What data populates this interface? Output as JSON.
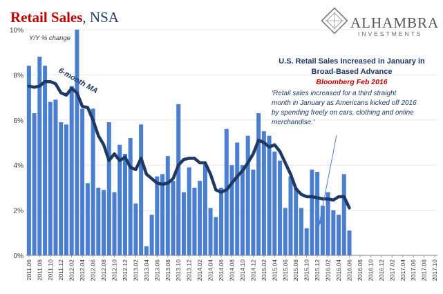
{
  "header": {
    "title_main": "Retail Sales",
    "title_sub": ", NSA"
  },
  "logo": {
    "name": "ALHAMBRA",
    "sub": "INVESTMENTS"
  },
  "annotation": {
    "heading_line1": "U.S. Retail Sales Increased in January in",
    "heading_line2": "Broad-Based Advance",
    "source": "Bloomberg Feb 2016",
    "quote_lines": [
      "'Retail sales increased for a third straight",
      "month in January as Americans kicked off 2016",
      "by spending freely on cars, clothing and online",
      "merchandise.'"
    ]
  },
  "colors": {
    "bars": "#4a7fcf",
    "ma_line": "#1f3864",
    "title_red": "#c00000",
    "axis": "#808080"
  },
  "chart_data": {
    "type": "bar",
    "ylabel": "Y/Y % change",
    "ylim": [
      0,
      10
    ],
    "yticks": [
      "0%",
      "2%",
      "4%",
      "6%",
      "8%",
      "10%"
    ],
    "x_ticks": [
      "2011.06",
      "2011.08",
      "2011.10",
      "2011.12",
      "2012.02",
      "2012.04",
      "2012.06",
      "2012.08",
      "2012.10",
      "2012.12",
      "2013.02",
      "2013.04",
      "2013.06",
      "2013.08",
      "2013.10",
      "2013.12",
      "2014.02",
      "2014.04",
      "2014.06",
      "2014.08",
      "2014.10",
      "2014.12",
      "2015.02",
      "2015.04",
      "2015.06",
      "2015.08",
      "2015.10",
      "2015.12",
      "2016.02",
      "2016.04",
      "2016.06",
      "2016.08",
      "2016.10",
      "2016.12",
      "2017.02",
      "2017.04",
      "2017.06",
      "2017.08",
      "2017.10"
    ],
    "x_start": "2011.06",
    "series": [
      {
        "type": "bar",
        "values": [
          8.4,
          6.3,
          8.8,
          8.4,
          6.8,
          6.9,
          5.9,
          5.8,
          7.5,
          10.0,
          6.5,
          3.2,
          6.5,
          3.0,
          2.9,
          5.9,
          2.8,
          4.9,
          4.5,
          5.2,
          2.3,
          5.8,
          0.4,
          1.8,
          3.5,
          3.6,
          4.4,
          3.3,
          6.7,
          2.8,
          3.9,
          3.0,
          3.3,
          4.1,
          2.1,
          1.7,
          3.0,
          5.6,
          4.0,
          5.0,
          4.0,
          5.3,
          3.8,
          6.3,
          5.5,
          5.3,
          4.6,
          4.2,
          2.1,
          3.5,
          3.0,
          2.1,
          1.2,
          3.8,
          3.7,
          2.2,
          2.8,
          2.0,
          1.8,
          3.6,
          1.1
        ]
      },
      {
        "name": "6-month MA",
        "type": "line",
        "values": [
          7.5,
          7.45,
          7.5,
          7.7,
          7.7,
          7.6,
          7.2,
          7.1,
          7.4,
          7.2,
          6.6,
          6.55,
          6.0,
          5.3,
          4.9,
          4.2,
          4.5,
          4.2,
          4.35,
          3.9,
          3.8,
          4.3,
          3.6,
          3.4,
          3.2,
          3.15,
          3.2,
          3.4,
          4.0,
          4.25,
          4.3,
          4.3,
          4.1,
          4.1,
          3.6,
          2.9,
          2.8,
          2.9,
          3.2,
          3.5,
          3.75,
          4.1,
          4.5,
          5.1,
          5.0,
          4.8,
          4.9,
          4.6,
          4.1,
          3.6,
          2.95,
          2.7,
          2.6,
          2.6,
          2.55,
          2.5,
          2.5,
          2.45,
          2.6,
          2.6,
          2.1
        ]
      }
    ]
  }
}
